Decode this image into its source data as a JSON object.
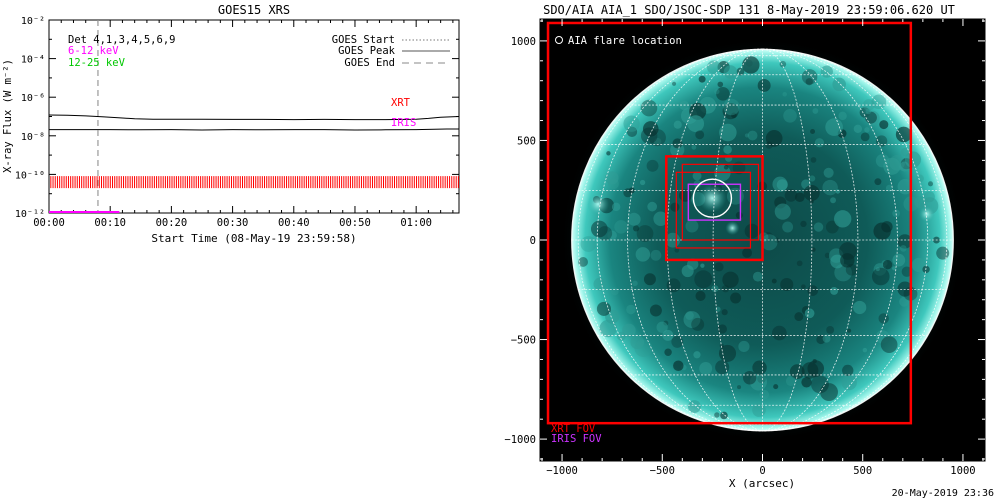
{
  "chart_data": [
    {
      "type": "line",
      "title": "GOES15 XRS",
      "xlabel": "Start Time (08-May-19 23:59:58)",
      "ylabel": "X-ray Flux (W m⁻²)",
      "x_unit": "minutes after start",
      "xlim": [
        0,
        67
      ],
      "ylim_log10": [
        -12,
        -2
      ],
      "y_scale": "log",
      "x_ticks": [
        0,
        10,
        20,
        30,
        40,
        50,
        60
      ],
      "x_tick_labels": [
        "00:00",
        "00:10",
        "00:20",
        "00:30",
        "00:40",
        "00:50",
        "01:00"
      ],
      "y_ticks_exp": [
        -12,
        -10,
        -8,
        -6,
        -4,
        -2
      ],
      "y_tick_labels": [
        "10⁻¹²",
        "10⁻¹⁰",
        "10⁻⁸",
        "10⁻⁶",
        "10⁻⁴",
        "10⁻²"
      ],
      "series": [
        {
          "name": "12-25 keV",
          "color": "#000000",
          "x": [
            0,
            3,
            6,
            9,
            12,
            14,
            17,
            20,
            25,
            30,
            35,
            40,
            45,
            50,
            55,
            60,
            62,
            64,
            67
          ],
          "log10_flux": [
            -6.92,
            -6.94,
            -6.97,
            -7.02,
            -7.08,
            -7.12,
            -7.14,
            -7.14,
            -7.14,
            -7.15,
            -7.15,
            -7.16,
            -7.15,
            -7.16,
            -7.16,
            -7.14,
            -7.1,
            -7.04,
            -7.0
          ]
        },
        {
          "name": "6-12 keV",
          "color": "#000000",
          "x": [
            0,
            5,
            10,
            15,
            20,
            25,
            30,
            35,
            40,
            45,
            50,
            55,
            60,
            65,
            67
          ],
          "log10_flux": [
            -7.68,
            -7.68,
            -7.68,
            -7.69,
            -7.68,
            -7.7,
            -7.68,
            -7.69,
            -7.68,
            -7.68,
            -7.7,
            -7.69,
            -7.68,
            -7.65,
            -7.65
          ]
        }
      ],
      "goes_peak_time_min": 8,
      "xrt_obs_log10": -10.4,
      "iris_obs_log10": -12.0,
      "iris_span_min": [
        0,
        11.5
      ],
      "xrt_color": "#ff0000",
      "iris_color": "#ff00ff",
      "dashed_color": "#999999",
      "channels_label": "Det 4,1,3,4,5,6,9",
      "channel_6_12": "6-12 keV",
      "channel_12_25": "12-25 keV",
      "channel_6_12_color": "#ff00ff",
      "channel_12_25_color": "#00c800",
      "legend": [
        {
          "label": "GOES Start",
          "style": "dotted"
        },
        {
          "label": "GOES Peak",
          "style": "solid"
        },
        {
          "label": "GOES End",
          "style": "dashed"
        }
      ],
      "xrt_label": "XRT",
      "iris_label": "IRIS"
    },
    {
      "type": "image",
      "title": "SDO/AIA AIA_1 SDO/JSOC-SDP 131  8-May-2019 23:59:06.620 UT",
      "xlabel": "X (arcsec)",
      "ylabel": "",
      "xlim": [
        -1110,
        1110
      ],
      "ylim": [
        -1110,
        1110
      ],
      "x_ticks": [
        -1000,
        -500,
        0,
        500,
        1000
      ],
      "y_ticks": [
        -1000,
        -500,
        0,
        500,
        1000
      ],
      "solar_radius_arcsec": 952,
      "legend_marker": "AIA flare location",
      "flare_location": {
        "x": -250,
        "y": 210,
        "r": 95
      },
      "xrt_fov_outer": {
        "x0": -1070,
        "x1": 740,
        "y0": -920,
        "y1": 1090
      },
      "xrt_fov_boxes": [
        {
          "x0": -480,
          "x1": 0,
          "y0": -100,
          "y1": 420
        },
        {
          "x0": -430,
          "x1": -60,
          "y0": -40,
          "y1": 340
        },
        {
          "x0": -400,
          "x1": -20,
          "y0": 0,
          "y1": 380
        }
      ],
      "iris_fov": {
        "x0": -370,
        "x1": -110,
        "y0": 100,
        "y1": 280
      },
      "xrt_fov_label": "XRT FOV",
      "iris_fov_label": "IRIS FOV",
      "xrt_color": "#ff0000",
      "iris_color": "#cc33ff"
    }
  ],
  "footer": {
    "timestamp": "20-May-2019 23:36"
  }
}
